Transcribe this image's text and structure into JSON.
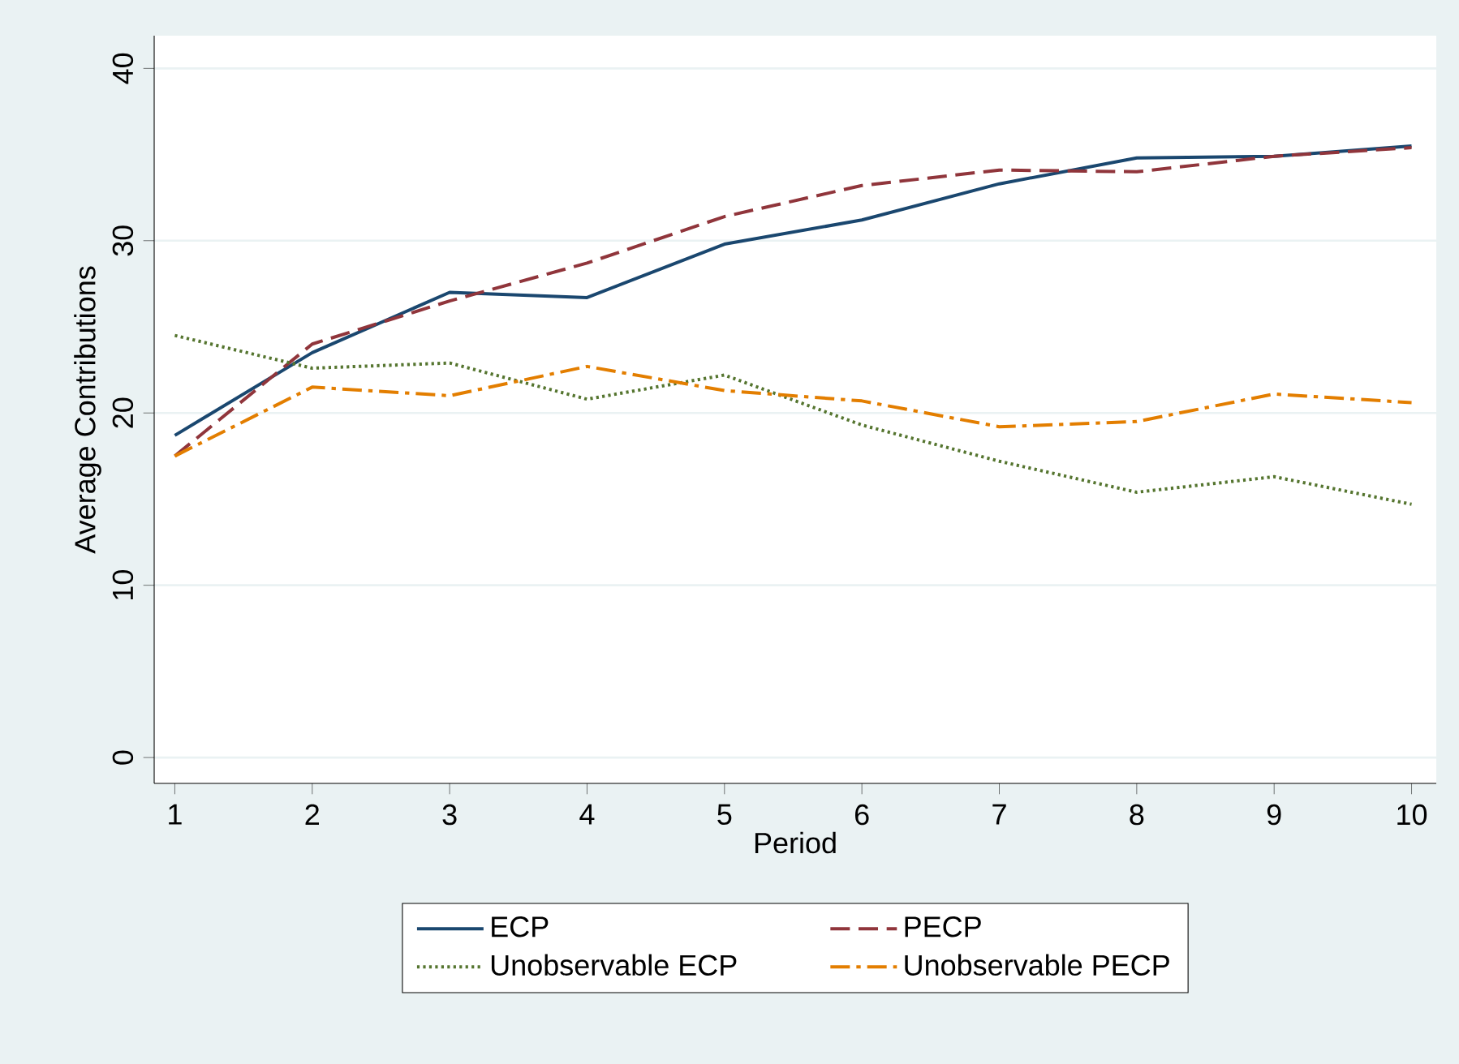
{
  "chart_data": {
    "type": "line",
    "xlabel": "Period",
    "ylabel": "Average Contributions",
    "x": [
      1,
      2,
      3,
      4,
      5,
      6,
      7,
      8,
      9,
      10
    ],
    "xlim": [
      0.85,
      10.18
    ],
    "ylim": [
      -1.5,
      41.9
    ],
    "xticks": [
      1,
      2,
      3,
      4,
      5,
      6,
      7,
      8,
      9,
      10
    ],
    "yticks": [
      0,
      10,
      20,
      30,
      40
    ],
    "grid": "y",
    "legend": "bottom",
    "marker": "none",
    "series": [
      {
        "name": "ECP",
        "color": "#1a476f",
        "line_style": "solid",
        "values": [
          18.7,
          23.5,
          27.0,
          26.7,
          29.8,
          31.2,
          33.3,
          34.8,
          34.9,
          35.5
        ]
      },
      {
        "name": "PECP",
        "color": "#90353b",
        "line_style": "dashed",
        "values": [
          17.5,
          24.0,
          26.5,
          28.7,
          31.4,
          33.2,
          34.1,
          34.0,
          34.9,
          35.4
        ]
      },
      {
        "name": "Unobservable ECP",
        "color": "#55752f",
        "line_style": "dotted",
        "values": [
          24.5,
          22.6,
          22.9,
          20.8,
          22.2,
          19.3,
          17.2,
          15.4,
          16.3,
          14.7
        ]
      },
      {
        "name": "Unobservable PECP",
        "color": "#e37e00",
        "line_style": "dashdot",
        "values": [
          17.5,
          21.5,
          21.0,
          22.7,
          21.3,
          20.7,
          19.2,
          19.5,
          21.1,
          20.6
        ]
      }
    ]
  }
}
